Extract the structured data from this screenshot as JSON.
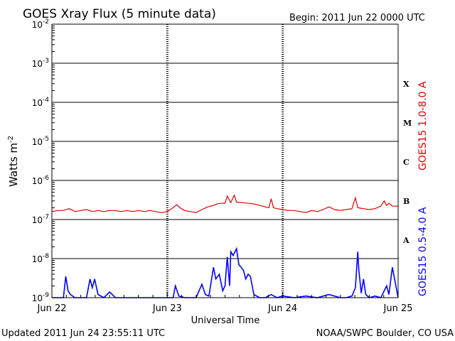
{
  "header": {
    "title": "GOES Xray Flux (5 minute data)",
    "begin": "Begin:  2011 Jun 22 0000 UTC"
  },
  "footer": {
    "updated": "Updated 2011 Jun 24 23:55:11 UTC",
    "source": "NOAA/SWPC Boulder, CO USA"
  },
  "chart_data": {
    "type": "line",
    "title": "GOES Xray Flux (5 minute data)",
    "xlabel": "Universal Time",
    "ylabel_base": "Watts m",
    "ylabel_exp": "-2",
    "yscale": "log",
    "ylim": [
      1e-09,
      0.01
    ],
    "xlim": [
      0,
      3
    ],
    "x_tick_labels": [
      "Jun 22",
      "Jun 23",
      "Jun 24",
      "Jun 25"
    ],
    "y_ticks": [
      {
        "value": 0.01,
        "base": "10",
        "exp": "-2"
      },
      {
        "value": 0.001,
        "base": "10",
        "exp": "-3"
      },
      {
        "value": 0.0001,
        "base": "10",
        "exp": "-4"
      },
      {
        "value": 1e-05,
        "base": "10",
        "exp": "-5"
      },
      {
        "value": 1e-06,
        "base": "10",
        "exp": "-6"
      },
      {
        "value": 1e-07,
        "base": "10",
        "exp": "-7"
      },
      {
        "value": 1e-08,
        "base": "10",
        "exp": "-8"
      },
      {
        "value": 1e-09,
        "base": "10",
        "exp": "-9"
      }
    ],
    "flare_classes": [
      {
        "label": "X",
        "value": 0.0003
      },
      {
        "label": "M",
        "value": 3e-05
      },
      {
        "label": "C",
        "value": 3e-06
      },
      {
        "label": "B",
        "value": 3e-07
      },
      {
        "label": "A",
        "value": 3e-08
      }
    ],
    "grid": true,
    "colors": {
      "long": "#e00000",
      "short": "#0000ff",
      "axis": "#000000"
    },
    "series": [
      {
        "name": "GOES15 1.0-8.0 A",
        "color": "#e00000",
        "x": [
          0.0,
          0.05,
          0.1,
          0.15,
          0.2,
          0.25,
          0.3,
          0.35,
          0.4,
          0.45,
          0.5,
          0.55,
          0.6,
          0.65,
          0.7,
          0.75,
          0.8,
          0.85,
          0.9,
          0.95,
          1.0,
          1.05,
          1.08,
          1.12,
          1.15,
          1.2,
          1.25,
          1.3,
          1.35,
          1.4,
          1.45,
          1.5,
          1.52,
          1.55,
          1.58,
          1.6,
          1.65,
          1.7,
          1.75,
          1.8,
          1.85,
          1.88,
          1.9,
          1.92,
          1.95,
          2.0,
          2.05,
          2.1,
          2.15,
          2.2,
          2.25,
          2.3,
          2.35,
          2.4,
          2.45,
          2.5,
          2.55,
          2.6,
          2.63,
          2.65,
          2.7,
          2.75,
          2.8,
          2.85,
          2.88,
          2.9,
          2.92,
          2.95,
          3.0
        ],
        "y": [
          1.6e-07,
          1.7e-07,
          1.7e-07,
          1.9e-07,
          1.6e-07,
          1.7e-07,
          1.8e-07,
          1.6e-07,
          1.7e-07,
          1.6e-07,
          1.7e-07,
          1.7e-07,
          1.6e-07,
          1.7e-07,
          1.6e-07,
          1.7e-07,
          1.6e-07,
          1.7e-07,
          1.6e-07,
          1.5e-07,
          1.6e-07,
          2e-07,
          2.4e-07,
          1.9e-07,
          1.7e-07,
          1.6e-07,
          1.5e-07,
          1.8e-07,
          2.1e-07,
          2.3e-07,
          2.6e-07,
          2.6e-07,
          4e-07,
          2.7e-07,
          4.2e-07,
          2.8e-07,
          2.7e-07,
          2.6e-07,
          2.5e-07,
          2.3e-07,
          2.1e-07,
          2e-07,
          3.4e-07,
          2e-07,
          1.9e-07,
          1.8e-07,
          1.7e-07,
          1.7e-07,
          1.6e-07,
          1.5e-07,
          1.7e-07,
          1.6e-07,
          1.8e-07,
          2.1e-07,
          1.8e-07,
          1.7e-07,
          1.8e-07,
          1.9e-07,
          3.6e-07,
          2e-07,
          1.9e-07,
          1.8e-07,
          1.9e-07,
          2.2e-07,
          3e-07,
          2.3e-07,
          2.6e-07,
          2.2e-07,
          2.2e-07
        ]
      },
      {
        "name": "GOES15 0.5-4.0 A",
        "color": "#0000ff",
        "x": [
          0.0,
          0.1,
          0.12,
          0.14,
          0.16,
          0.2,
          0.25,
          0.3,
          0.33,
          0.35,
          0.37,
          0.4,
          0.45,
          0.5,
          0.55,
          0.6,
          0.7,
          0.8,
          0.9,
          1.0,
          1.05,
          1.07,
          1.1,
          1.15,
          1.2,
          1.25,
          1.3,
          1.33,
          1.36,
          1.4,
          1.42,
          1.45,
          1.48,
          1.5,
          1.52,
          1.54,
          1.55,
          1.57,
          1.6,
          1.62,
          1.64,
          1.66,
          1.68,
          1.7,
          1.72,
          1.75,
          1.8,
          1.85,
          1.9,
          1.95,
          2.0,
          2.1,
          2.2,
          2.3,
          2.4,
          2.5,
          2.55,
          2.6,
          2.63,
          2.65,
          2.66,
          2.68,
          2.7,
          2.72,
          2.75,
          2.8,
          2.85,
          2.9,
          2.92,
          2.95,
          3.0
        ],
        "y": [
          1e-09,
          1e-09,
          3.5e-09,
          1.5e-09,
          1.2e-09,
          1e-09,
          1e-09,
          1e-09,
          3e-09,
          1.8e-09,
          3e-09,
          1.2e-09,
          1e-09,
          1.4e-09,
          1e-09,
          1e-09,
          1e-09,
          1e-09,
          1e-09,
          1e-09,
          1e-09,
          2e-09,
          1.1e-09,
          1e-09,
          1e-09,
          1e-09,
          2.2e-09,
          1.2e-09,
          1.1e-09,
          6e-09,
          3e-09,
          4e-09,
          1.5e-09,
          2e-09,
          1.1e-08,
          2e-09,
          1.5e-08,
          1.2e-08,
          1.8e-08,
          7e-09,
          6e-09,
          5e-09,
          3e-09,
          4e-09,
          3.5e-09,
          1.2e-09,
          1e-09,
          1e-09,
          1.2e-09,
          1e-09,
          1.1e-09,
          1e-09,
          1.1e-09,
          1e-09,
          1.2e-09,
          1e-09,
          1e-09,
          1.1e-09,
          1.8e-09,
          1.5e-08,
          5e-09,
          1.3e-09,
          3e-09,
          1.2e-09,
          1e-09,
          1.1e-09,
          1e-09,
          2e-09,
          1.2e-09,
          6e-09,
          1e-09
        ]
      }
    ]
  }
}
